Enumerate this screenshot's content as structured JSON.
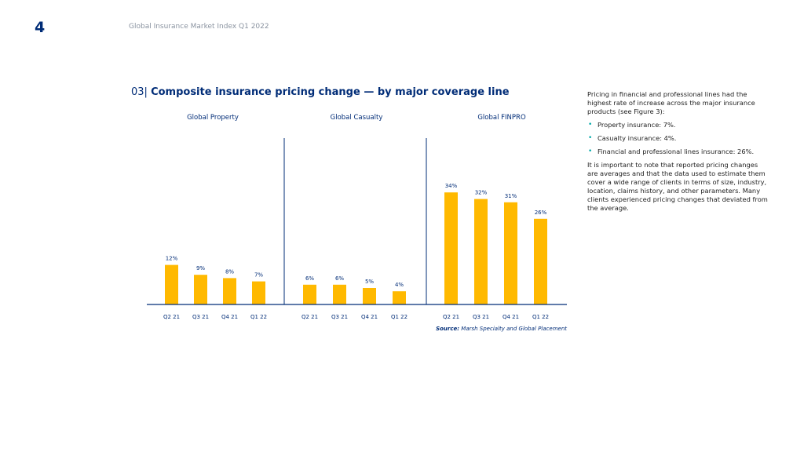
{
  "page_number": "4",
  "header_title": "Global Insurance Market Index Q1 2022",
  "figure": {
    "number": "03|",
    "title": "Composite insurance pricing change — by major coverage line",
    "source_label": "Source:",
    "source_text": "Marsh Specialty and Global Placement"
  },
  "colors": {
    "bar": "#FFB900",
    "axis": "#002C77",
    "text": "#002C77"
  },
  "chart_data": {
    "type": "bar",
    "title": "Composite insurance pricing change — by major coverage line",
    "categories": [
      "Q2 21",
      "Q3 21",
      "Q4 21",
      "Q1 22"
    ],
    "unit": "%",
    "ylim": [
      0,
      40
    ],
    "grid": false,
    "groups": [
      {
        "name": "Global Property",
        "values": [
          12,
          9,
          8,
          7
        ],
        "labels": [
          "12%",
          "9%",
          "8%",
          "7%"
        ]
      },
      {
        "name": "Global Casualty",
        "values": [
          6,
          6,
          5,
          4
        ],
        "labels": [
          "6%",
          "6%",
          "5%",
          "4%"
        ]
      },
      {
        "name": "Global FINPRO",
        "values": [
          34,
          32,
          31,
          26
        ],
        "labels": [
          "34%",
          "32%",
          "31%",
          "26%"
        ]
      }
    ]
  },
  "sidebar": {
    "intro": "Pricing in financial and professional lines had the highest rate of increase across the major insurance products (see Figure 3):",
    "bullets": [
      "Property insurance: 7%.",
      "Casualty insurance: 4%.",
      "Financial and professional lines insurance: 26%."
    ],
    "note": "It is important to note that reported pricing changes are averages and that the data used to estimate them cover a wide range of clients in terms of size, industry, location, claims history, and other parameters. Many clients experienced pricing changes that deviated from the average."
  }
}
